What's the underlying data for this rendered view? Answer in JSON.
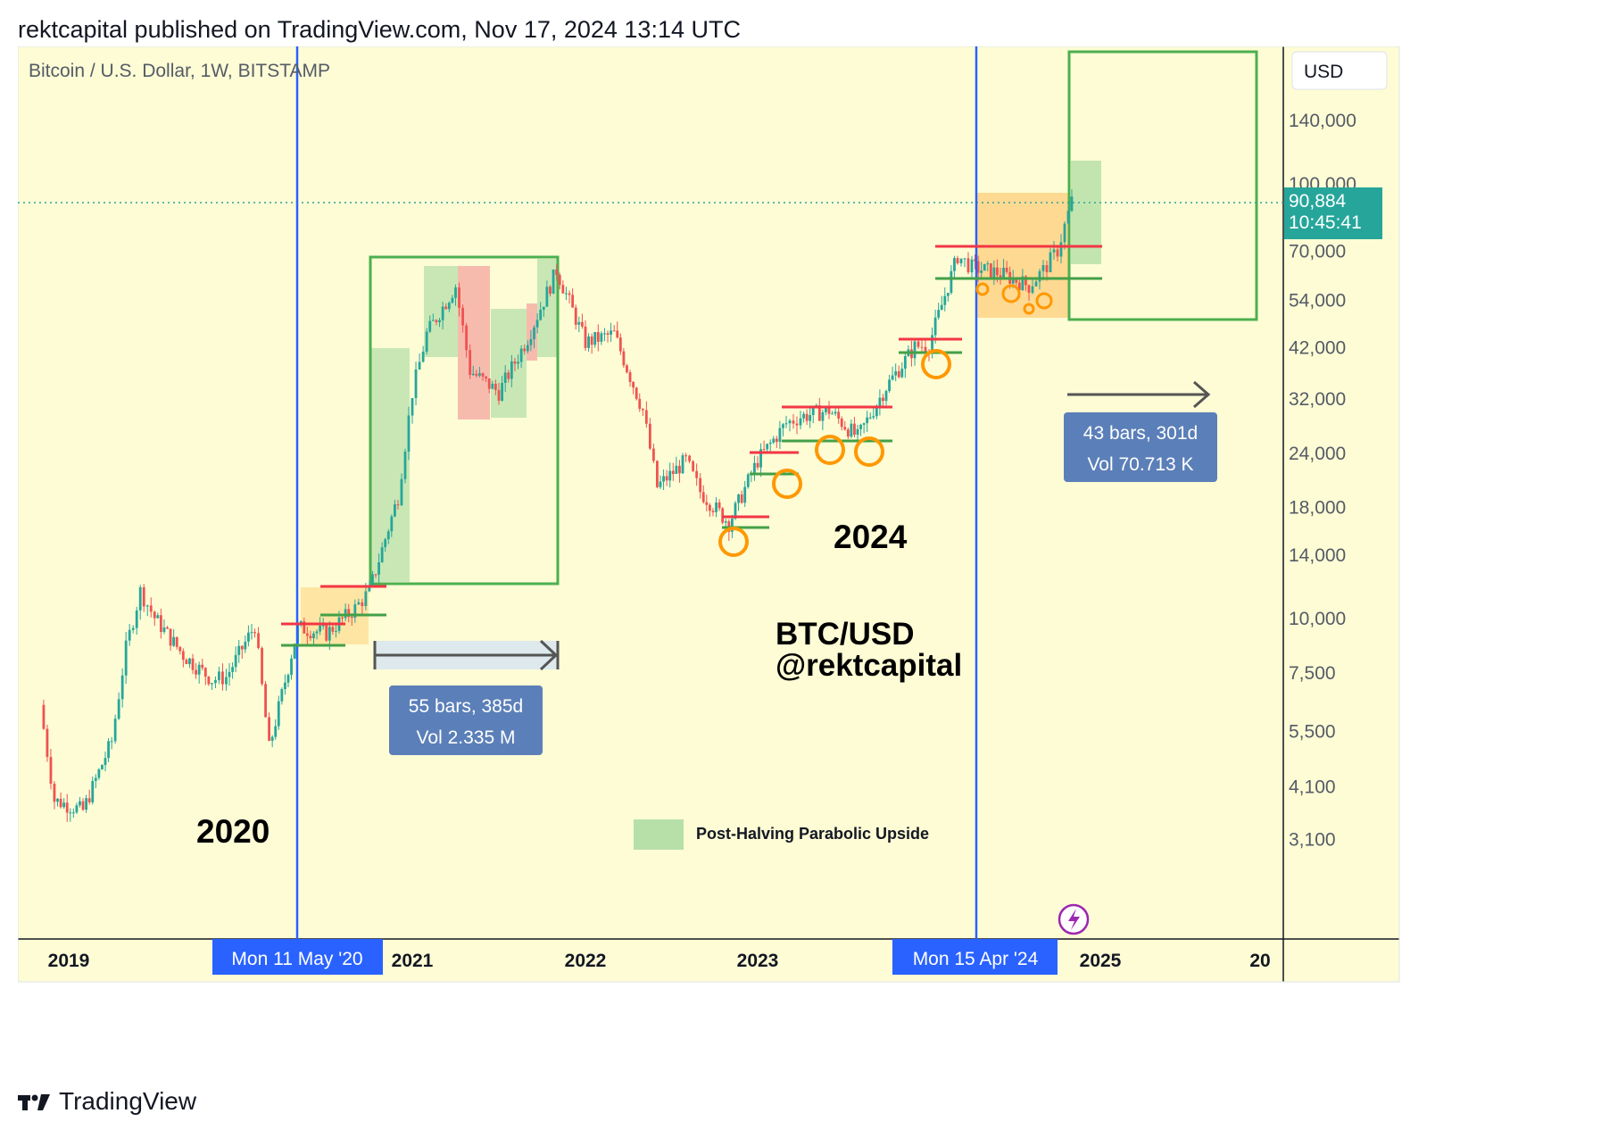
{
  "header": {
    "attribution": "rektcapital published on TradingView.com, Nov 17, 2024 13:14 UTC"
  },
  "legend_symbol": "Bitcoin / U.S. Dollar, 1W, BITSTAMP",
  "currency_button": "USD",
  "price_label": {
    "price": "90,884",
    "countdown": "10:45:41"
  },
  "measures": [
    {
      "bars": "55 bars, 385d",
      "vol": "Vol 2.335 M"
    },
    {
      "bars": "43 bars, 301d",
      "vol": "Vol 70.713 K"
    }
  ],
  "annotations": {
    "year_2020": "2020",
    "year_2024": "2024",
    "pair": "BTC/USD",
    "handle": "@rektcapital",
    "legend_label": "Post-Halving Parabolic Upside"
  },
  "halving_labels": [
    "Mon 11 May '20",
    "Mon 15 Apr '24"
  ],
  "brand": "TradingView",
  "colors": {
    "background": "#fdfcd5",
    "up": "#26a69a",
    "down": "#ef5350",
    "halving_line": "#2962ff",
    "box_green": "#4caf50",
    "circle_orange": "#ff9800",
    "resistance_red": "#f23645",
    "support_green": "#43a047",
    "measure_box": "#5b7fb8"
  },
  "chart_data": {
    "type": "candlestick",
    "title": "Bitcoin / U.S. Dollar, 1W, BITSTAMP",
    "xlabel": "",
    "ylabel": "",
    "scale": "log",
    "ylim": [
      2600,
      210000
    ],
    "y_ticks": [
      "140,000",
      "100,000",
      "70,000",
      "54,000",
      "42,000",
      "32,000",
      "24,000",
      "18,000",
      "14,000",
      "10,000",
      "7,500",
      "5,500",
      "4,100",
      "3,100"
    ],
    "x_ticks": [
      "2019",
      "2021",
      "2022",
      "2023",
      "2025",
      "20"
    ],
    "series": [
      {
        "name": "BTC/USD",
        "x": [
          "2018-11",
          "2018-12",
          "2019-02",
          "2019-04",
          "2019-05",
          "2019-06",
          "2019-07",
          "2019-09",
          "2019-11",
          "2019-12",
          "2020-02",
          "2020-03",
          "2020-05",
          "2020-07",
          "2020-09",
          "2020-10",
          "2020-12",
          "2021-01",
          "2021-02",
          "2021-04",
          "2021-05",
          "2021-07",
          "2021-09",
          "2021-11",
          "2022-01",
          "2022-03",
          "2022-05",
          "2022-06",
          "2022-08",
          "2022-09",
          "2022-11",
          "2023-01",
          "2023-03",
          "2023-04",
          "2023-06",
          "2023-08",
          "2023-10",
          "2023-12",
          "2024-01",
          "2024-03",
          "2024-04",
          "2024-06",
          "2024-08",
          "2024-09",
          "2024-10",
          "2024-11"
        ],
        "close": [
          6300,
          3800,
          3600,
          5200,
          8500,
          11500,
          10000,
          8200,
          7200,
          7300,
          9600,
          5000,
          9500,
          9200,
          10500,
          11500,
          19000,
          33000,
          45000,
          58000,
          37000,
          33000,
          44000,
          63000,
          43000,
          45000,
          30000,
          20000,
          23000,
          19500,
          16500,
          23000,
          28000,
          29000,
          30000,
          26000,
          34000,
          42000,
          42500,
          68000,
          64000,
          62000,
          58000,
          63000,
          70000,
          90884
        ]
      }
    ],
    "halvings": [
      "2020-05-11",
      "2024-04-15"
    ],
    "measures": [
      {
        "from": "2020-05-11",
        "bars": 55,
        "days": 385,
        "volume": "2.335M"
      },
      {
        "from": "2024-11-17",
        "bars": 43,
        "days": 301,
        "volume": "70.713K"
      }
    ],
    "last_price": 90884,
    "grid": false
  }
}
